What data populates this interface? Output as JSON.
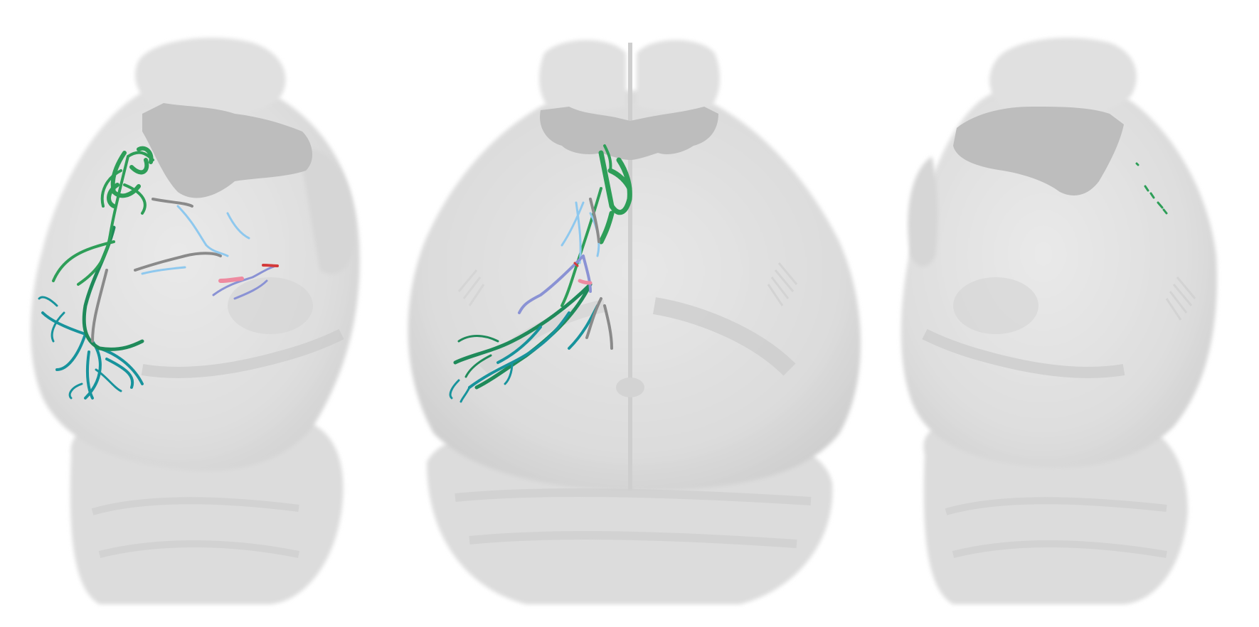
{
  "figure": {
    "panels": [
      {
        "id": "left",
        "view": "lateral-left"
      },
      {
        "id": "center",
        "view": "dorsal"
      },
      {
        "id": "right",
        "view": "lateral-right"
      }
    ],
    "colors": {
      "background": "#ffffff",
      "brain_body": "#e4e4e4",
      "brain_shade": "#d2d2d2",
      "brain_dark": "#c4c4c4",
      "olfactory_mask": "#bdbdbd",
      "neuron_green": "#2e9e58",
      "neuron_dark_green": "#1f8a5a",
      "neuron_teal": "#17939c",
      "neuron_light_blue": "#8ec8ee",
      "neuron_lavender": "#8a92d4",
      "neuron_gray": "#8a8a8a",
      "neuron_pink": "#ee8aa0",
      "neuron_red": "#d43a3a"
    }
  }
}
